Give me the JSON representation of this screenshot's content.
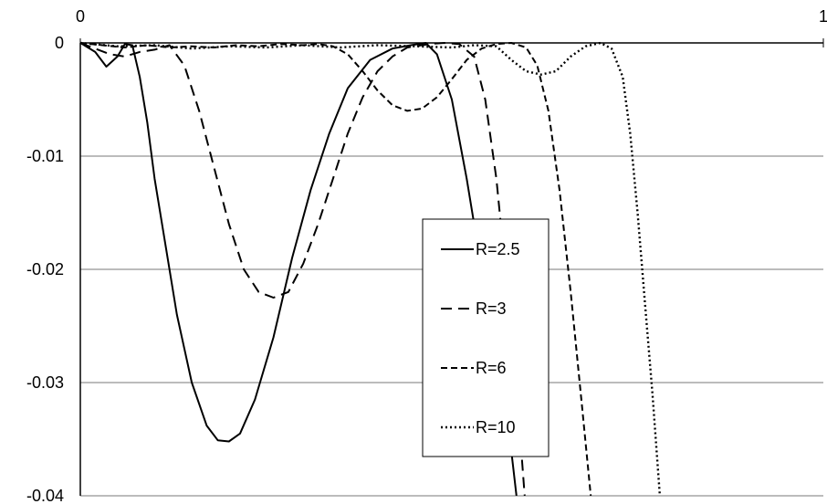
{
  "chart_data": {
    "type": "line",
    "title": "",
    "xlabel": "",
    "ylabel": "",
    "xlim": [
      0,
      1
    ],
    "ylim": [
      -0.04,
      0
    ],
    "x_ticks": [
      "0",
      "1"
    ],
    "y_ticks": [
      "0",
      "-0.01",
      "-0.02",
      "-0.03",
      "-0.04"
    ],
    "grid": "horizontal",
    "legend_position": "center-right",
    "series": [
      {
        "name": "R=2.5",
        "dash": "solid",
        "points": [
          [
            0.0,
            0.0
          ],
          [
            0.02,
            -0.0008
          ],
          [
            0.035,
            -0.0021
          ],
          [
            0.05,
            -0.0012
          ],
          [
            0.06,
            -0.0001
          ],
          [
            0.07,
            -0.0002
          ],
          [
            0.08,
            -0.003
          ],
          [
            0.09,
            -0.007
          ],
          [
            0.1,
            -0.012
          ],
          [
            0.115,
            -0.018
          ],
          [
            0.13,
            -0.024
          ],
          [
            0.15,
            -0.03
          ],
          [
            0.17,
            -0.0338
          ],
          [
            0.185,
            -0.0351
          ],
          [
            0.2,
            -0.0352
          ],
          [
            0.215,
            -0.0345
          ],
          [
            0.235,
            -0.0315
          ],
          [
            0.26,
            -0.026
          ],
          [
            0.285,
            -0.019
          ],
          [
            0.31,
            -0.013
          ],
          [
            0.335,
            -0.008
          ],
          [
            0.36,
            -0.004
          ],
          [
            0.39,
            -0.0015
          ],
          [
            0.42,
            -0.0005
          ],
          [
            0.445,
            -0.0002
          ],
          [
            0.465,
            0.0
          ],
          [
            0.48,
            -0.001
          ],
          [
            0.5,
            -0.005
          ],
          [
            0.52,
            -0.012
          ],
          [
            0.54,
            -0.02
          ],
          [
            0.56,
            -0.028
          ],
          [
            0.58,
            -0.036
          ],
          [
            0.587,
            -0.04
          ]
        ]
      },
      {
        "name": "R=3",
        "dash": "long-dash",
        "points": [
          [
            0.0,
            0.0
          ],
          [
            0.02,
            -0.0005
          ],
          [
            0.04,
            -0.001
          ],
          [
            0.06,
            -0.0012
          ],
          [
            0.08,
            -0.0008
          ],
          [
            0.1,
            -0.0006
          ],
          [
            0.12,
            -0.0002
          ],
          [
            0.14,
            -0.002
          ],
          [
            0.16,
            -0.006
          ],
          [
            0.18,
            -0.011
          ],
          [
            0.2,
            -0.016
          ],
          [
            0.22,
            -0.02
          ],
          [
            0.24,
            -0.022
          ],
          [
            0.26,
            -0.0225
          ],
          [
            0.28,
            -0.022
          ],
          [
            0.3,
            -0.0195
          ],
          [
            0.32,
            -0.016
          ],
          [
            0.34,
            -0.012
          ],
          [
            0.36,
            -0.008
          ],
          [
            0.38,
            -0.0048
          ],
          [
            0.4,
            -0.0025
          ],
          [
            0.42,
            -0.0012
          ],
          [
            0.44,
            -0.0004
          ],
          [
            0.47,
            -0.0001
          ],
          [
            0.49,
            0.0
          ],
          [
            0.51,
            -0.0001
          ],
          [
            0.53,
            -0.0012
          ],
          [
            0.545,
            -0.005
          ],
          [
            0.56,
            -0.012
          ],
          [
            0.575,
            -0.022
          ],
          [
            0.59,
            -0.033
          ],
          [
            0.598,
            -0.04
          ]
        ]
      },
      {
        "name": "R=6",
        "dash": "short-dash",
        "points": [
          [
            0.0,
            0.0
          ],
          [
            0.03,
            -0.0002
          ],
          [
            0.06,
            -0.0004
          ],
          [
            0.09,
            -0.0002
          ],
          [
            0.12,
            -0.0004
          ],
          [
            0.15,
            -0.0003
          ],
          [
            0.18,
            -0.0004
          ],
          [
            0.21,
            -0.0002
          ],
          [
            0.24,
            -0.0003
          ],
          [
            0.27,
            -0.0001
          ],
          [
            0.3,
            -0.0002
          ],
          [
            0.32,
            -0.0001
          ],
          [
            0.34,
            -0.0003
          ],
          [
            0.36,
            -0.001
          ],
          [
            0.38,
            -0.0025
          ],
          [
            0.4,
            -0.0042
          ],
          [
            0.42,
            -0.0055
          ],
          [
            0.44,
            -0.006
          ],
          [
            0.46,
            -0.0058
          ],
          [
            0.48,
            -0.0048
          ],
          [
            0.5,
            -0.0032
          ],
          [
            0.52,
            -0.0015
          ],
          [
            0.54,
            -0.0005
          ],
          [
            0.56,
            -0.0001
          ],
          [
            0.58,
            0.0
          ],
          [
            0.6,
            -0.0004
          ],
          [
            0.615,
            -0.002
          ],
          [
            0.63,
            -0.006
          ],
          [
            0.645,
            -0.013
          ],
          [
            0.66,
            -0.022
          ],
          [
            0.675,
            -0.032
          ],
          [
            0.687,
            -0.04
          ]
        ]
      },
      {
        "name": "R=10",
        "dash": "dotted",
        "points": [
          [
            0.0,
            0.0
          ],
          [
            0.05,
            -0.0003
          ],
          [
            0.1,
            -0.0002
          ],
          [
            0.15,
            -0.0005
          ],
          [
            0.2,
            -0.0003
          ],
          [
            0.25,
            -0.0004
          ],
          [
            0.3,
            -0.0002
          ],
          [
            0.35,
            -0.0004
          ],
          [
            0.4,
            -0.0002
          ],
          [
            0.45,
            -0.0003
          ],
          [
            0.5,
            -0.0004
          ],
          [
            0.53,
            -0.0002
          ],
          [
            0.56,
            -0.0003
          ],
          [
            0.58,
            -0.0015
          ],
          [
            0.6,
            -0.0025
          ],
          [
            0.62,
            -0.0028
          ],
          [
            0.64,
            -0.0025
          ],
          [
            0.66,
            -0.0012
          ],
          [
            0.68,
            -0.0003
          ],
          [
            0.7,
            0.0
          ],
          [
            0.715,
            -0.0005
          ],
          [
            0.73,
            -0.003
          ],
          [
            0.74,
            -0.008
          ],
          [
            0.75,
            -0.015
          ],
          [
            0.76,
            -0.023
          ],
          [
            0.77,
            -0.031
          ],
          [
            0.78,
            -0.04
          ]
        ]
      }
    ]
  }
}
